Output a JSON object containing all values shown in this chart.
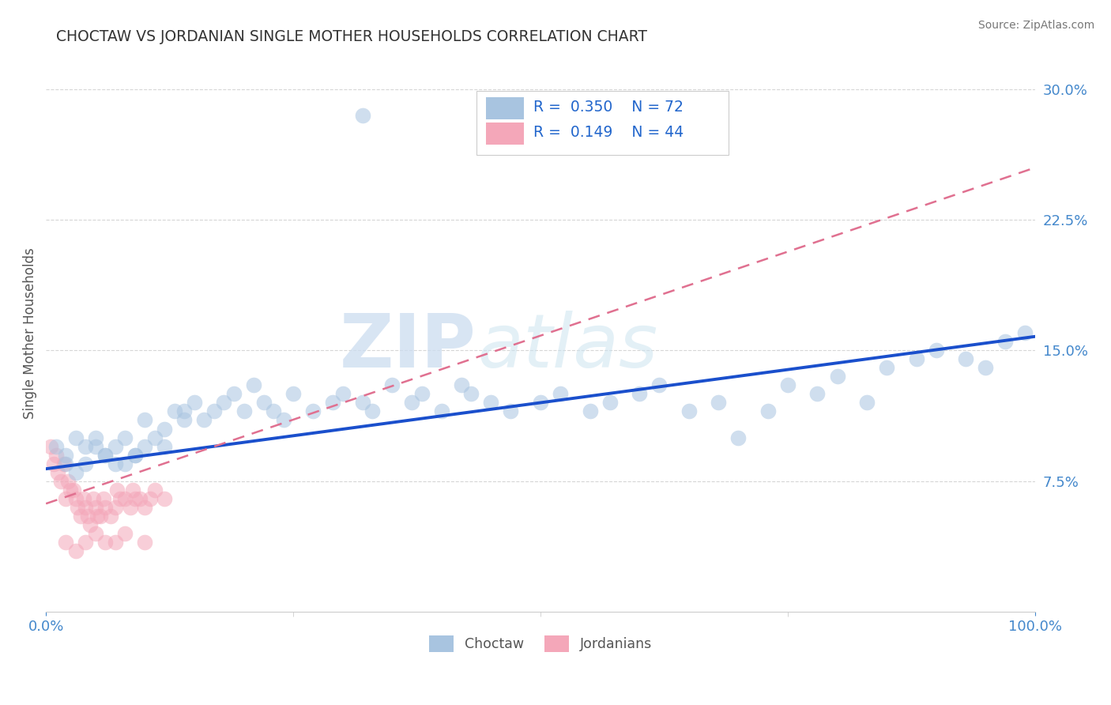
{
  "title": "CHOCTAW VS JORDANIAN SINGLE MOTHER HOUSEHOLDS CORRELATION CHART",
  "source": "Source: ZipAtlas.com",
  "ylabel": "Single Mother Households",
  "xlim": [
    0,
    1
  ],
  "ylim": [
    0,
    0.32
  ],
  "yticks": [
    0.075,
    0.15,
    0.225,
    0.3
  ],
  "ytick_labels": [
    "7.5%",
    "15.0%",
    "22.5%",
    "30.0%"
  ],
  "xticks": [
    0.0,
    1.0
  ],
  "xtick_labels": [
    "0.0%",
    "100.0%"
  ],
  "choctaw_color": "#a8c4e0",
  "jordanian_color": "#f4a7b9",
  "choctaw_line_color": "#1a4fcc",
  "jordanian_line_color": "#e07090",
  "R_choctaw": 0.35,
  "N_choctaw": 72,
  "R_jordanian": 0.149,
  "N_jordanian": 44,
  "watermark_zip": "ZIP",
  "watermark_atlas": "atlas",
  "background_color": "#ffffff",
  "title_color": "#3a3a3a",
  "axis_label_color": "#4488cc",
  "tick_color": "#4488cc"
}
